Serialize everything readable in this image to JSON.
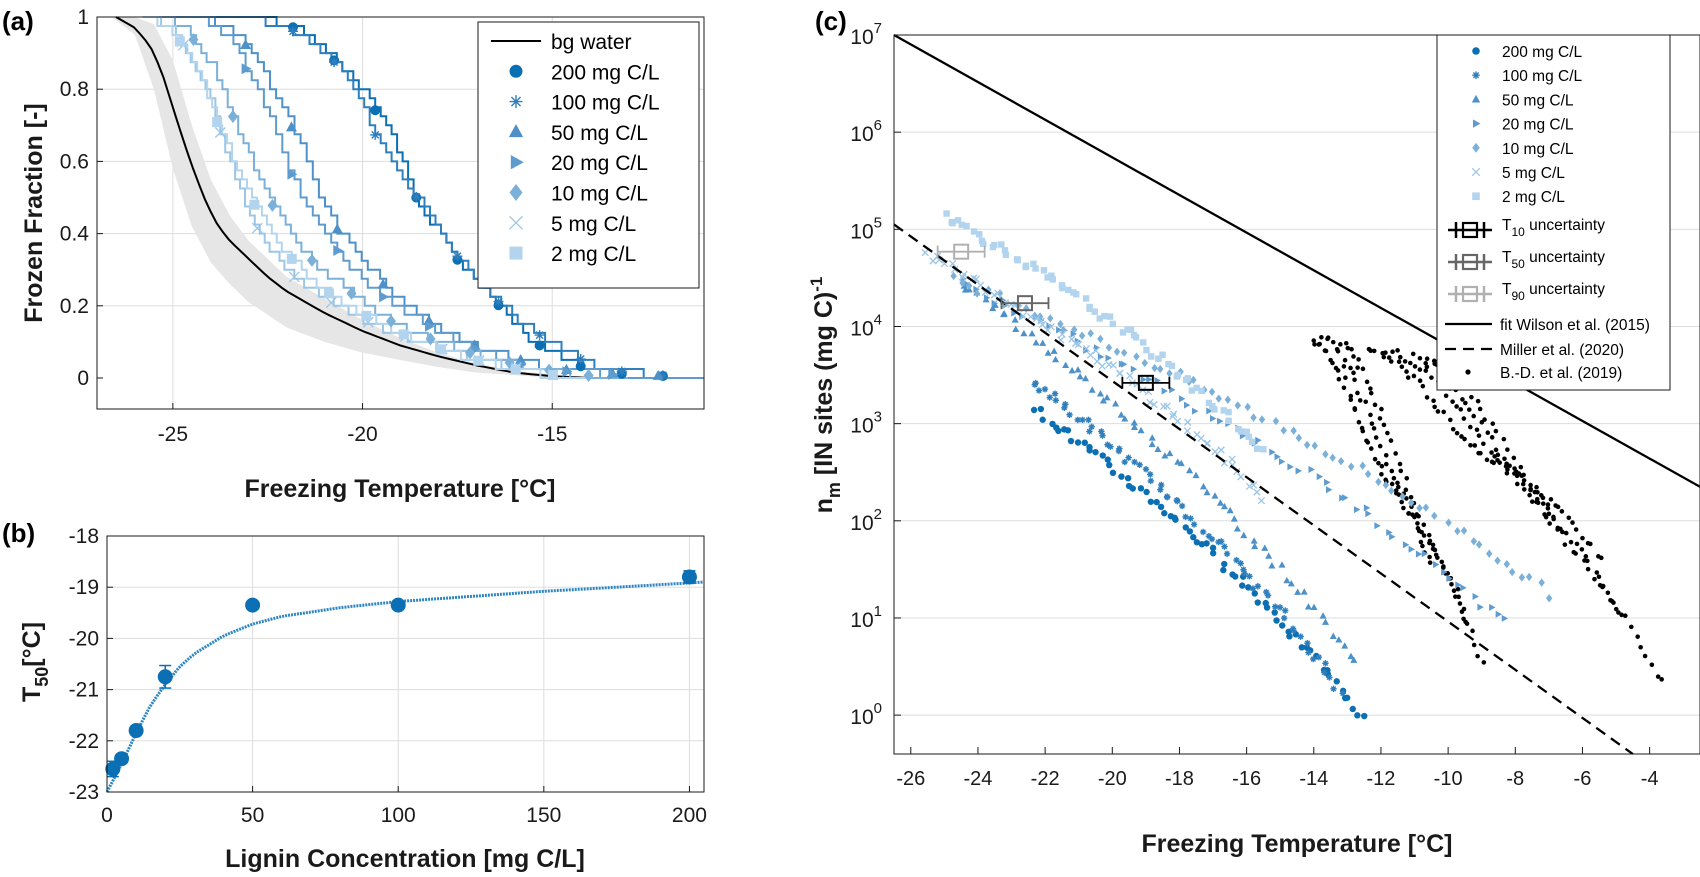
{
  "colors": {
    "c200": "#0b6fb3",
    "c100": "#2f7fbd",
    "c50": "#4d91c8",
    "c20": "#5e9ccf",
    "c10": "#7bb0d9",
    "c5": "#9cc6e6",
    "c2": "#b3d4ee",
    "bg": "#000000",
    "band": "#e6e6e6",
    "fit": "#2d86c4",
    "t10": "#000000",
    "t50": "#666666",
    "t90": "#b0b0b0"
  },
  "panel_labels": {
    "a": "(a)",
    "b": "(b)",
    "c": "(c)"
  },
  "chart_data": [
    {
      "id": "a",
      "type": "line",
      "title": "",
      "xlabel": "Freezing Temperature [°C]",
      "ylabel": "Frozen Fraction [-]",
      "xlim": [
        -27,
        -11
      ],
      "ylim": [
        0,
        1
      ],
      "xticks": [
        -25,
        -20,
        -15
      ],
      "xtick_labels": [
        "-25",
        "-20",
        "-15"
      ],
      "yticks": [
        0,
        0.2,
        0.4,
        0.6,
        0.8,
        1
      ],
      "ytick_labels": [
        "0",
        "0.2",
        "0.4",
        "0.6",
        "0.8",
        "1"
      ],
      "legend_position": "top-right",
      "background_band": {
        "name": "bg water spread",
        "x": [
          -26.6,
          -26.0,
          -25.5,
          -25.0,
          -24.5,
          -24.0,
          -23.5,
          -23.0,
          -22.0,
          -21.0,
          -20.0,
          -19.0,
          -18.0,
          -17.0,
          -16.0,
          -15.0
        ],
        "lower": [
          1.0,
          0.95,
          0.8,
          0.58,
          0.42,
          0.32,
          0.26,
          0.21,
          0.14,
          0.1,
          0.07,
          0.05,
          0.03,
          0.015,
          0.008,
          0.0
        ],
        "upper": [
          1.0,
          1.0,
          0.98,
          0.88,
          0.7,
          0.55,
          0.45,
          0.38,
          0.28,
          0.22,
          0.16,
          0.11,
          0.07,
          0.04,
          0.02,
          0.01
        ]
      },
      "series": [
        {
          "name": "bg water",
          "marker": "none",
          "color_key": "bg",
          "x": [
            -26.5,
            -26.0,
            -25.6,
            -25.3,
            -25.0,
            -24.7,
            -24.4,
            -24.1,
            -23.8,
            -23.5,
            -23.0,
            -22.5,
            -22.0,
            -21.0,
            -20.0,
            -19.0,
            -18.0,
            -17.0,
            -16.0,
            -15.0,
            -14.0
          ],
          "y": [
            1.0,
            0.97,
            0.92,
            0.85,
            0.75,
            0.65,
            0.56,
            0.48,
            0.42,
            0.38,
            0.33,
            0.28,
            0.24,
            0.18,
            0.13,
            0.09,
            0.06,
            0.035,
            0.015,
            0.005,
            0.0
          ]
        },
        {
          "name": "200 mg C/L",
          "marker": "circle",
          "color_key": "c200",
          "x": [
            -24.0,
            -23.0,
            -22.0,
            -21.4,
            -21.0,
            -20.5,
            -20.0,
            -19.6,
            -19.2,
            -18.9,
            -18.7,
            -18.3,
            -18.0,
            -17.6,
            -17.2,
            -16.8,
            -16.4,
            -16.0,
            -15.6,
            -15.2,
            -14.6,
            -14.0,
            -13.0,
            -12.0,
            -11.0
          ],
          "y": [
            1.0,
            1.0,
            0.98,
            0.95,
            0.91,
            0.85,
            0.8,
            0.73,
            0.66,
            0.59,
            0.52,
            0.45,
            0.4,
            0.34,
            0.29,
            0.24,
            0.2,
            0.15,
            0.11,
            0.08,
            0.05,
            0.02,
            0.01,
            0.005,
            0.0
          ]
        },
        {
          "name": "100 mg C/L",
          "marker": "star",
          "color_key": "c100",
          "x": [
            -24.0,
            -23.0,
            -22.0,
            -21.3,
            -20.7,
            -20.2,
            -19.8,
            -19.4,
            -19.0,
            -18.5,
            -18.0,
            -17.6,
            -17.2,
            -16.8,
            -16.3,
            -15.8,
            -15.2,
            -14.6,
            -14.0,
            -13.3,
            -12.5,
            -11.0
          ],
          "y": [
            1.0,
            1.0,
            0.97,
            0.93,
            0.87,
            0.8,
            0.7,
            0.62,
            0.56,
            0.49,
            0.41,
            0.35,
            0.3,
            0.25,
            0.2,
            0.15,
            0.11,
            0.07,
            0.04,
            0.02,
            0.01,
            0.0
          ]
        },
        {
          "name": "50 mg C/L",
          "marker": "triangle",
          "color_key": "c50",
          "x": [
            -25.5,
            -24.5,
            -23.6,
            -23.2,
            -22.8,
            -22.5,
            -22.2,
            -21.9,
            -21.6,
            -21.3,
            -21.0,
            -20.6,
            -20.2,
            -19.8,
            -19.3,
            -18.7,
            -18.0,
            -17.3,
            -16.5,
            -15.5,
            -14.5,
            -13.0,
            -11.0
          ],
          "y": [
            1.0,
            1.0,
            0.98,
            0.94,
            0.88,
            0.82,
            0.77,
            0.7,
            0.63,
            0.55,
            0.47,
            0.4,
            0.35,
            0.3,
            0.24,
            0.19,
            0.14,
            0.1,
            0.07,
            0.04,
            0.02,
            0.01,
            0.0
          ]
        },
        {
          "name": "20 mg C/L",
          "marker": "triangle-right",
          "color_key": "c20",
          "x": [
            -25.5,
            -24.5,
            -23.8,
            -23.4,
            -23.1,
            -22.8,
            -22.5,
            -22.2,
            -21.9,
            -21.5,
            -21.0,
            -20.5,
            -20.0,
            -19.4,
            -18.8,
            -18.2,
            -17.5,
            -16.8,
            -16.0,
            -15.0,
            -13.5,
            -11.0
          ],
          "y": [
            1.0,
            1.0,
            0.97,
            0.92,
            0.86,
            0.8,
            0.73,
            0.65,
            0.57,
            0.48,
            0.4,
            0.33,
            0.27,
            0.22,
            0.18,
            0.14,
            0.1,
            0.07,
            0.04,
            0.02,
            0.01,
            0.0
          ]
        },
        {
          "name": "10 mg C/L",
          "marker": "diamond",
          "color_key": "c10",
          "x": [
            -25.5,
            -24.8,
            -24.4,
            -24.0,
            -23.7,
            -23.4,
            -23.1,
            -22.8,
            -22.5,
            -22.1,
            -21.7,
            -21.2,
            -20.6,
            -20.0,
            -19.3,
            -18.5,
            -17.5,
            -16.5,
            -15.5,
            -14.5,
            -13.0
          ],
          "y": [
            1.0,
            0.98,
            0.93,
            0.87,
            0.8,
            0.72,
            0.64,
            0.57,
            0.5,
            0.43,
            0.37,
            0.31,
            0.26,
            0.21,
            0.16,
            0.12,
            0.08,
            0.05,
            0.03,
            0.01,
            0.0
          ]
        },
        {
          "name": "5 mg C/L",
          "marker": "x",
          "color_key": "c5",
          "x": [
            -25.7,
            -25.0,
            -24.6,
            -24.2,
            -23.9,
            -23.6,
            -23.3,
            -23.0,
            -22.6,
            -22.2,
            -21.7,
            -21.0,
            -20.2,
            -19.3,
            -18.2,
            -17.0,
            -16.0,
            -15.0,
            -14.0
          ],
          "y": [
            1.0,
            0.97,
            0.9,
            0.82,
            0.73,
            0.63,
            0.54,
            0.46,
            0.38,
            0.32,
            0.27,
            0.22,
            0.17,
            0.13,
            0.09,
            0.05,
            0.03,
            0.01,
            0.0
          ]
        },
        {
          "name": "2 mg C/L",
          "marker": "square",
          "color_key": "c2",
          "x": [
            -25.8,
            -25.2,
            -24.8,
            -24.4,
            -24.1,
            -23.8,
            -23.5,
            -23.2,
            -22.9,
            -22.6,
            -22.2,
            -21.7,
            -21.1,
            -20.4,
            -19.5,
            -18.5,
            -17.4,
            -16.3,
            -15.2,
            -14.0
          ],
          "y": [
            1.0,
            0.98,
            0.93,
            0.86,
            0.78,
            0.7,
            0.62,
            0.55,
            0.49,
            0.43,
            0.37,
            0.31,
            0.25,
            0.2,
            0.15,
            0.1,
            0.06,
            0.03,
            0.01,
            0.0
          ]
        }
      ],
      "legend": [
        "bg water",
        "200 mg C/L",
        "100 mg C/L",
        "50 mg C/L",
        "20 mg C/L",
        "10 mg C/L",
        "5 mg C/L",
        "2 mg C/L"
      ]
    },
    {
      "id": "b",
      "type": "scatter",
      "title": "",
      "xlabel": "Lignin Concentration [mg C/L]",
      "ylabel": "T50[°C]",
      "ylabel_main": "T",
      "ylabel_sub": "50",
      "ylabel_unit": "[°C]",
      "xlim": [
        0,
        205
      ],
      "ylim": [
        -23,
        -18
      ],
      "xticks": [
        0,
        50,
        100,
        150,
        200
      ],
      "xtick_labels": [
        "0",
        "50",
        "100",
        "150",
        "200"
      ],
      "yticks": [
        -23,
        -22,
        -21,
        -20,
        -19,
        -18
      ],
      "ytick_labels": [
        "-23",
        "-22",
        "-21",
        "-20",
        "-19",
        "-18"
      ],
      "points": {
        "x": [
          2,
          5,
          10,
          20,
          50,
          100,
          200
        ],
        "y": [
          -22.55,
          -22.35,
          -21.8,
          -20.75,
          -19.35,
          -19.35,
          -18.8
        ],
        "err": [
          0.15,
          0.08,
          0.08,
          0.22,
          0.05,
          0.06,
          0.12
        ]
      },
      "fit": {
        "x": [
          0,
          5,
          10,
          15,
          20,
          25,
          30,
          40,
          50,
          60,
          80,
          100,
          125,
          150,
          175,
          205
        ],
        "y": [
          -23.0,
          -22.45,
          -21.85,
          -21.3,
          -20.9,
          -20.55,
          -20.3,
          -19.95,
          -19.72,
          -19.57,
          -19.4,
          -19.28,
          -19.18,
          -19.08,
          -19.0,
          -18.9
        ]
      }
    },
    {
      "id": "c",
      "type": "scatter",
      "title": "",
      "xlabel": "Freezing Temperature [°C]",
      "ylabel": "nm [IN sites (mg C)-1]",
      "ylabel_n": "n",
      "ylabel_sub": "m",
      "ylabel_mid": " [IN sites (mg C)",
      "ylabel_sup": "-1",
      "yscale": "log",
      "xlim": [
        -26.5,
        -2.5
      ],
      "ylim_exp": [
        -0.4,
        7.0
      ],
      "xticks": [
        -26,
        -24,
        -22,
        -20,
        -18,
        -16,
        -14,
        -12,
        -10,
        -8,
        -6,
        -4
      ],
      "xtick_labels": [
        "-26",
        "-24",
        "-22",
        "-20",
        "-18",
        "-16",
        "-14",
        "-12",
        "-10",
        "-8",
        "-6",
        "-4"
      ],
      "yticks_exp": [
        0,
        1,
        2,
        3,
        4,
        5,
        6,
        7
      ],
      "ytick_base": "10",
      "ytick_exps": [
        "0",
        "1",
        "2",
        "3",
        "4",
        "5",
        "6",
        "7"
      ],
      "legend_position": "top-right",
      "series": [
        {
          "name": "200 mg C/L",
          "marker": "circle",
          "color_key": "c200",
          "x0": -22.3,
          "x1": -12.5,
          "y0": 3.15,
          "y1": -0.05
        },
        {
          "name": "100 mg C/L",
          "marker": "star",
          "color_key": "c100",
          "x0": -22.4,
          "x1": -13.2,
          "y0": 3.45,
          "y1": 0.25
        },
        {
          "name": "50 mg C/L",
          "marker": "triangle",
          "color_key": "c50",
          "x0": -24.5,
          "x1": -12.8,
          "y0": 4.45,
          "y1": 0.55
        },
        {
          "name": "20 mg C/L",
          "marker": "triangle-right",
          "color_key": "c20",
          "x0": -24.5,
          "x1": -8.3,
          "y0": 4.45,
          "y1": 0.95
        },
        {
          "name": "10 mg C/L",
          "marker": "diamond",
          "color_key": "c10",
          "x0": -24.7,
          "x1": -7.0,
          "y0": 4.5,
          "y1": 1.25
        },
        {
          "name": "5 mg C/L",
          "marker": "x",
          "color_key": "c5",
          "x0": -25.5,
          "x1": -15.5,
          "y0": 4.75,
          "y1": 2.25
        },
        {
          "name": "2 mg C/L",
          "marker": "square",
          "color_key": "c2",
          "x0": -25.0,
          "x1": -15.5,
          "y0": 5.15,
          "y1": 2.7
        }
      ],
      "uncertainty": [
        {
          "name": "T10 uncertainty",
          "label_main": "T",
          "label_sub": "10",
          "label_rest": " uncertainty",
          "x": -19.0,
          "y_exp": 3.42,
          "xerr": 0.7,
          "color_key": "t10"
        },
        {
          "name": "T50 uncertainty",
          "label_main": "T",
          "label_sub": "50",
          "label_rest": " uncertainty",
          "x": -22.6,
          "y_exp": 4.24,
          "xerr": 0.7,
          "color_key": "t50"
        },
        {
          "name": "T90 uncertainty",
          "label_main": "T",
          "label_sub": "90",
          "label_rest": " uncertainty",
          "x": -24.5,
          "y_exp": 4.77,
          "xerr": 0.7,
          "color_key": "t90"
        }
      ],
      "reference_lines": [
        {
          "name": "fit Wilson et al. (2015)",
          "style": "solid",
          "x": [
            -26.5,
            -2.5
          ],
          "y_exp": [
            7.0,
            2.35
          ]
        },
        {
          "name": "Miller et al. (2020)",
          "style": "dashed",
          "x": [
            -26.5,
            -4.5
          ],
          "y_exp": [
            5.05,
            -0.4
          ]
        }
      ],
      "bd_data": {
        "name": "B.-D. et al. (2019)",
        "marker": "dot",
        "clusters": [
          {
            "x0": -14.0,
            "x1": -10.5,
            "y0": 3.85,
            "y1": 1.5
          },
          {
            "x0": -13.7,
            "x1": -9.5,
            "y0": 3.9,
            "y1": 0.9
          },
          {
            "x0": -13.2,
            "x1": -9.0,
            "y0": 3.85,
            "y1": 0.5
          },
          {
            "x0": -12.4,
            "x1": -6.8,
            "y0": 3.75,
            "y1": 2.0
          },
          {
            "x0": -11.8,
            "x1": -5.4,
            "y0": 3.75,
            "y1": 1.55
          },
          {
            "x0": -11.0,
            "x1": -4.8,
            "y0": 3.7,
            "y1": 1.0
          },
          {
            "x0": -10.6,
            "x1": -3.6,
            "y0": 3.7,
            "y1": 0.3
          }
        ]
      },
      "legend": [
        "200 mg C/L",
        "100 mg C/L",
        "50 mg C/L",
        "20 mg C/L",
        "10 mg C/L",
        "5 mg C/L",
        "2 mg C/L",
        "T10 uncertainty",
        "T50 uncertainty",
        "T90 uncertainty",
        "fit Wilson et al. (2015)",
        "Miller et al. (2020)",
        "B.-D. et al. (2019)"
      ]
    }
  ]
}
